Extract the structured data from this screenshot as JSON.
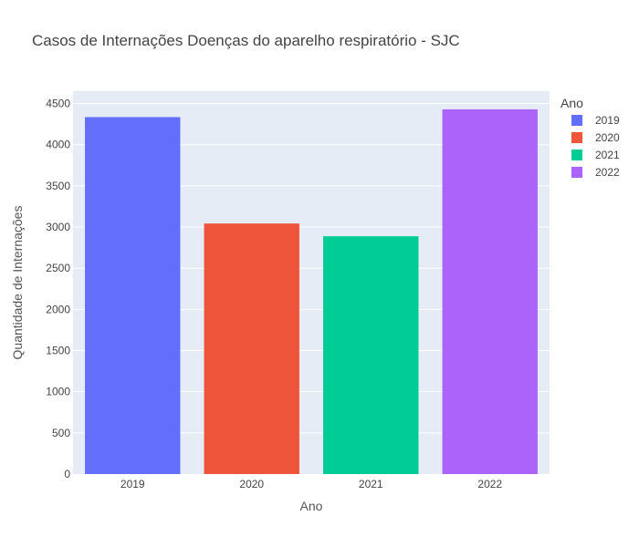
{
  "chart_data": {
    "type": "bar",
    "title": "Casos de Internações Doenças do aparelho respiratório - SJC",
    "xlabel": "Ano",
    "ylabel": "Quantidade de Internações",
    "categories": [
      "2019",
      "2020",
      "2021",
      "2022"
    ],
    "values": [
      4335,
      3043,
      2888,
      4429
    ],
    "colors": [
      "#636efa",
      "#ef553b",
      "#00cc96",
      "#ab63fa"
    ],
    "ylim": [
      0,
      4650
    ],
    "yticks": [
      0,
      500,
      1000,
      1500,
      2000,
      2500,
      3000,
      3500,
      4000,
      4500
    ],
    "grid": true,
    "legend": {
      "title": "Ano",
      "placement": "right",
      "entries": [
        "2019",
        "2020",
        "2021",
        "2022"
      ]
    },
    "plot_background": "#e5ecf6"
  }
}
